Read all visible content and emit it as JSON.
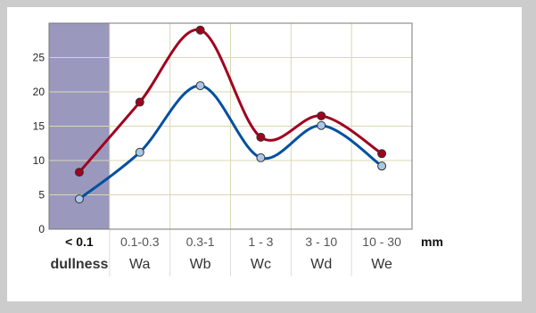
{
  "chart_data": {
    "type": "line",
    "categories": [
      "< 0.1",
      "0.1-0.3",
      "0.3-1",
      "1 - 3",
      "3 - 10",
      "10 - 30"
    ],
    "unit": "mm",
    "sub_labels": [
      "dullness",
      "Wa",
      "Wb",
      "Wc",
      "Wd",
      "We"
    ],
    "series": [
      {
        "color": "#a0001e",
        "values": [
          8.3,
          18.5,
          29.0,
          13.4,
          16.5,
          11.0
        ]
      },
      {
        "color": "#0050a0",
        "values": [
          4.4,
          11.2,
          20.9,
          10.4,
          15.1,
          9.2
        ]
      }
    ],
    "y_ticks": [
      0,
      5,
      10,
      15,
      20,
      25
    ],
    "ylim": [
      0,
      30
    ],
    "grid": true,
    "highlight_category": "< 0.1",
    "highlight_color": "#9a98bd",
    "accent_color": "#a0001e"
  }
}
